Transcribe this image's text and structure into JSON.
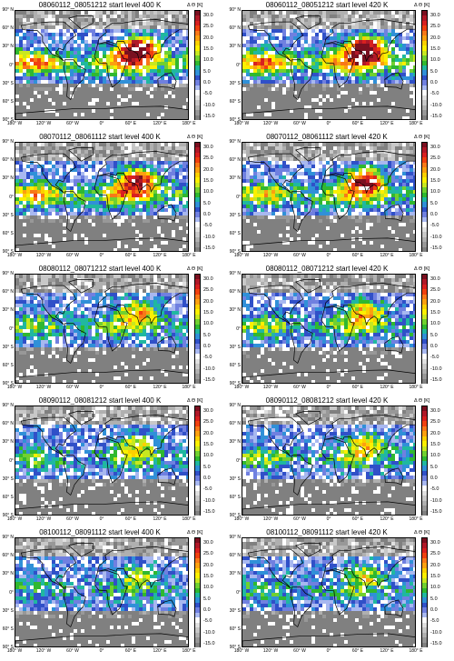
{
  "panels": [
    {
      "title": "08060112_08051212 start level 400 K",
      "intensity": 1.0
    },
    {
      "title": "08060112_08051212 start level 420 K",
      "intensity": 1.05
    },
    {
      "title": "08070112_08061112 start level 400 K",
      "intensity": 0.85
    },
    {
      "title": "08070112_08061112 start level 420 K",
      "intensity": 0.8
    },
    {
      "title": "08080112_08071212 start level 400 K",
      "intensity": 0.55
    },
    {
      "title": "08080112_08071212 start level 420 K",
      "intensity": 0.55
    },
    {
      "title": "08090112_08081212 start level 400 K",
      "intensity": 0.45
    },
    {
      "title": "08090112_08081212 start level 420 K",
      "intensity": 0.5
    },
    {
      "title": "08100112_08091112 start level 400 K",
      "intensity": 0.35
    },
    {
      "title": "08100112_08091112 start level 420 K",
      "intensity": 0.4
    }
  ],
  "colorbar": {
    "title": "Δ Θ [K]",
    "ticks": [
      "30.0",
      "25.0",
      "20.0",
      "15.0",
      "10.0",
      "5.0",
      "0.0",
      "-5.0",
      "-10.0",
      "-15.0"
    ],
    "colors": [
      "#7a1020",
      "#b01828",
      "#d82020",
      "#f04010",
      "#f87818",
      "#fca010",
      "#fcd000",
      "#fcf000",
      "#c8e820",
      "#70d030",
      "#30b830",
      "#20b8a0",
      "#3090d8",
      "#3050c8",
      "#7080e0",
      "#a8b8f0",
      "#ffffff",
      "#e0e0e0",
      "#c8c8c8",
      "#b0b0b0",
      "#989898",
      "#808080"
    ]
  },
  "axes": {
    "y": [
      "90° N",
      "60° N",
      "30° N",
      "0°",
      "30° S",
      "60° S",
      "90° S"
    ],
    "x": [
      "180° W",
      "120° W",
      "60° W",
      "0°",
      "60° E",
      "120° E",
      "180° E"
    ]
  }
}
